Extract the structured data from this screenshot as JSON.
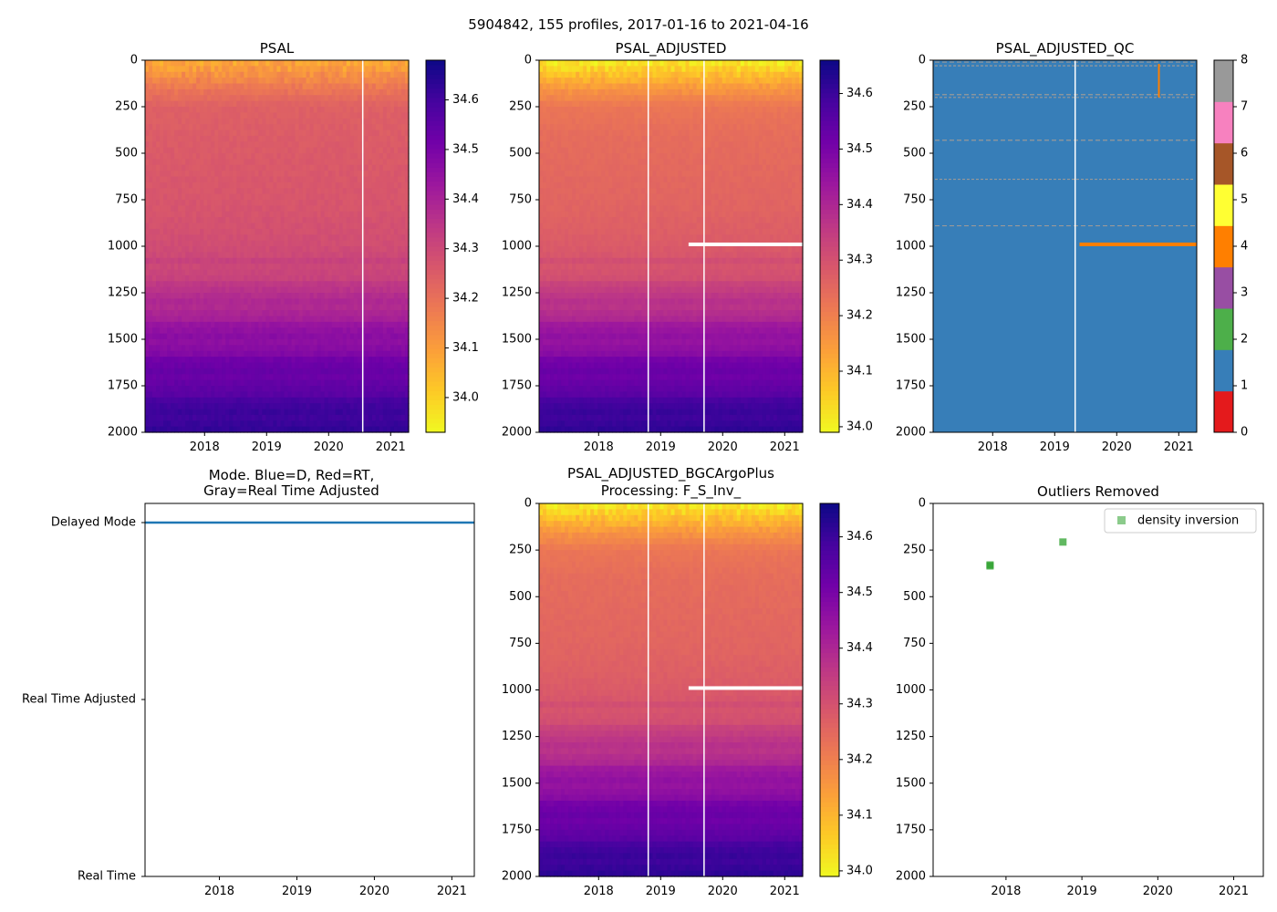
{
  "figure": {
    "suptitle": "5904842, 155 profiles, 2017-01-16 to 2021-04-16"
  },
  "palette": {
    "plasma_stops": [
      "#0d0887",
      "#46039f",
      "#7201a8",
      "#9c179e",
      "#bd3786",
      "#d8576b",
      "#ed7953",
      "#fb9f3a",
      "#fdca26",
      "#f0f921"
    ],
    "qc_colors": [
      "#e41a1c",
      "#377eb8",
      "#4daf4a",
      "#984ea3",
      "#ff7f00",
      "#ffff33",
      "#a65628",
      "#f781bf",
      "#999999"
    ],
    "mode_line": "#1f77b4",
    "outlier_marker": "#2ca02c",
    "qc4_mark": "#ff7f00"
  },
  "chart_data": [
    {
      "id": "psal",
      "type": "heatmap",
      "title": "PSAL",
      "ylabel": "",
      "x_range": [
        2017.04,
        2021.29
      ],
      "x_ticks": [
        2018,
        2019,
        2020,
        2021
      ],
      "x_tick_labels": [
        "2018",
        "2019",
        "2020",
        "2021"
      ],
      "ylim": [
        2000,
        0
      ],
      "y_ticks": [
        0,
        250,
        500,
        750,
        1000,
        1250,
        1500,
        1750,
        2000
      ],
      "y_tick_labels": [
        "0",
        "250",
        "500",
        "750",
        "1000",
        "1250",
        "1500",
        "1750",
        "2000"
      ],
      "colorbar": {
        "range": [
          33.93,
          34.68
        ],
        "ticks": [
          34.0,
          34.1,
          34.2,
          34.3,
          34.4,
          34.5,
          34.6
        ],
        "tick_labels": [
          "34.0",
          "34.1",
          "34.2",
          "34.3",
          "34.4",
          "34.5",
          "34.6"
        ]
      },
      "salinity_profile": {
        "depth": [
          0,
          50,
          150,
          250,
          400,
          600,
          800,
          1000,
          1200,
          1400,
          1600,
          1800,
          2000
        ],
        "value": [
          34.12,
          34.14,
          34.2,
          34.24,
          34.25,
          34.26,
          34.27,
          34.29,
          34.33,
          34.42,
          34.5,
          34.57,
          34.64
        ]
      },
      "gaps_year": [
        2020.55
      ],
      "masked_horizontal_band": null
    },
    {
      "id": "psal_adj",
      "type": "heatmap",
      "title": "PSAL_ADJUSTED",
      "x_range": [
        2017.04,
        2021.29
      ],
      "x_ticks": [
        2018,
        2019,
        2020,
        2021
      ],
      "x_tick_labels": [
        "2018",
        "2019",
        "2020",
        "2021"
      ],
      "ylim": [
        2000,
        0
      ],
      "y_ticks": [
        0,
        250,
        500,
        750,
        1000,
        1250,
        1500,
        1750,
        2000
      ],
      "y_tick_labels": [
        "0",
        "250",
        "500",
        "750",
        "1000",
        "1250",
        "1500",
        "1750",
        "2000"
      ],
      "colorbar": {
        "range": [
          33.99,
          34.66
        ],
        "ticks": [
          34.0,
          34.1,
          34.2,
          34.3,
          34.4,
          34.5,
          34.6
        ],
        "tick_labels": [
          "34.0",
          "34.1",
          "34.2",
          "34.3",
          "34.4",
          "34.5",
          "34.6"
        ]
      },
      "salinity_profile": {
        "depth": [
          0,
          50,
          150,
          250,
          400,
          600,
          800,
          1000,
          1200,
          1400,
          1600,
          1800,
          2000
        ],
        "value": [
          34.05,
          34.09,
          34.17,
          34.22,
          34.24,
          34.25,
          34.26,
          34.28,
          34.32,
          34.41,
          34.49,
          34.56,
          34.63
        ]
      },
      "gaps_year": [
        2018.8,
        2019.7
      ],
      "masked_horizontal_band": {
        "x_from": 2019.45,
        "x_to": 2021.29,
        "depth": 990
      }
    },
    {
      "id": "psal_adj_qc",
      "type": "heatmap",
      "title": "PSAL_ADJUSTED_QC",
      "x_range": [
        2017.04,
        2021.29
      ],
      "x_ticks": [
        2018,
        2019,
        2020,
        2021
      ],
      "x_tick_labels": [
        "2018",
        "2019",
        "2020",
        "2021"
      ],
      "ylim": [
        2000,
        0
      ],
      "y_ticks": [
        0,
        250,
        500,
        750,
        1000,
        1250,
        1500,
        1750,
        2000
      ],
      "y_tick_labels": [
        "0",
        "250",
        "500",
        "750",
        "1000",
        "1250",
        "1500",
        "1750",
        "2000"
      ],
      "qc_background_flag": 1,
      "qc4_band": {
        "x_from": 2019.4,
        "x_to": 2021.29,
        "depth": 990
      },
      "qc4_vertical": {
        "x": 2020.68,
        "depth_from": 20,
        "depth_to": 200
      },
      "qc8_rows_depth": [
        10,
        30,
        185,
        200,
        430,
        640,
        890
      ],
      "gaps_year": [
        2019.33
      ],
      "colorbar": {
        "range": [
          0,
          8
        ],
        "ticks": [
          0,
          1,
          2,
          3,
          4,
          5,
          6,
          7,
          8
        ],
        "tick_labels": [
          "0",
          "1",
          "2",
          "3",
          "4",
          "5",
          "6",
          "7",
          "8"
        ]
      }
    },
    {
      "id": "mode",
      "type": "line",
      "title_line1": "Mode. Blue=D, Red=RT,",
      "title_line2": "Gray=Real Time Adjusted",
      "x_range": [
        2017.04,
        2021.29
      ],
      "x_ticks": [
        2018,
        2019,
        2020,
        2021
      ],
      "x_tick_labels": [
        "2018",
        "2019",
        "2020",
        "2021"
      ],
      "y_categories": [
        "Delayed Mode",
        "Real Time Adjusted",
        "Real Time"
      ],
      "series": [
        {
          "name": "Delayed Mode",
          "x_from": 2017.04,
          "x_to": 2021.29,
          "category": "Delayed Mode"
        }
      ]
    },
    {
      "id": "bgc",
      "type": "heatmap",
      "title_line1": "PSAL_ADJUSTED_BGCArgoPlus",
      "title_line2": "Processing: F_S_Inv_",
      "x_range": [
        2017.04,
        2021.29
      ],
      "x_ticks": [
        2018,
        2019,
        2020,
        2021
      ],
      "x_tick_labels": [
        "2018",
        "2019",
        "2020",
        "2021"
      ],
      "ylim": [
        2000,
        0
      ],
      "y_ticks": [
        0,
        250,
        500,
        750,
        1000,
        1250,
        1500,
        1750,
        2000
      ],
      "y_tick_labels": [
        "0",
        "250",
        "500",
        "750",
        "1000",
        "1250",
        "1500",
        "1750",
        "2000"
      ],
      "colorbar": {
        "range": [
          33.99,
          34.66
        ],
        "ticks": [
          34.0,
          34.1,
          34.2,
          34.3,
          34.4,
          34.5,
          34.6
        ],
        "tick_labels": [
          "34.0",
          "34.1",
          "34.2",
          "34.3",
          "34.4",
          "34.5",
          "34.6"
        ]
      },
      "salinity_profile": {
        "depth": [
          0,
          50,
          150,
          250,
          400,
          600,
          800,
          1000,
          1200,
          1400,
          1600,
          1800,
          2000
        ],
        "value": [
          34.05,
          34.09,
          34.17,
          34.22,
          34.24,
          34.25,
          34.26,
          34.28,
          34.32,
          34.41,
          34.49,
          34.56,
          34.63
        ]
      },
      "gaps_year": [
        2018.8,
        2019.7
      ],
      "masked_horizontal_band": {
        "x_from": 2019.45,
        "x_to": 2021.29,
        "depth": 990
      }
    },
    {
      "id": "outliers",
      "type": "scatter",
      "title": "Outliers Removed",
      "x_range": [
        2017.04,
        2021.39
      ],
      "x_ticks": [
        2018,
        2019,
        2020,
        2021
      ],
      "x_tick_labels": [
        "2018",
        "2019",
        "2020",
        "2021"
      ],
      "ylim": [
        2000,
        0
      ],
      "y_ticks": [
        0,
        250,
        500,
        750,
        1000,
        1250,
        1500,
        1750,
        2000
      ],
      "y_tick_labels": [
        "0",
        "250",
        "500",
        "750",
        "1000",
        "1250",
        "1500",
        "1750",
        "2000"
      ],
      "legend": {
        "label": "density inversion",
        "placement": "top-right"
      },
      "series": [
        {
          "name": "density inversion",
          "points": [
            [
              2017.79,
              330
            ],
            [
              2017.79,
              335
            ],
            [
              2018.75,
              207
            ]
          ]
        }
      ]
    }
  ]
}
